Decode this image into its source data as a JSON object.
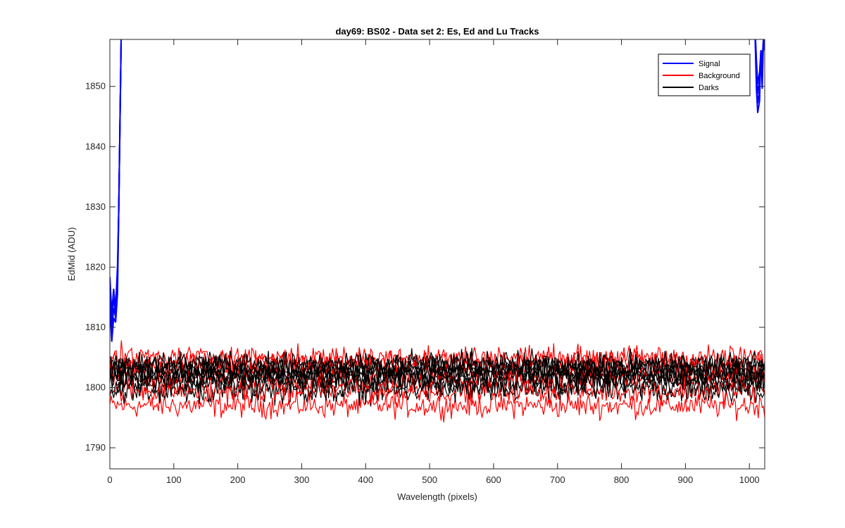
{
  "chart_data": {
    "type": "line",
    "title": "day69: BS02 - Data set 2: Es, Ed and Lu Tracks",
    "xlabel": "Wavelength (pixels)",
    "ylabel": "EdMid (ADU)",
    "xlim": [
      0,
      1024
    ],
    "ylim": [
      1786.5,
      1857.8
    ],
    "xticks": [
      0,
      100,
      200,
      300,
      400,
      500,
      600,
      700,
      800,
      900,
      1000
    ],
    "yticks": [
      1790,
      1800,
      1810,
      1820,
      1830,
      1840,
      1850
    ],
    "grid": false,
    "legend_position": "top-right",
    "colors": {
      "Signal": "#0000ff",
      "Background": "#ff0000",
      "Darks": "#000000"
    },
    "series": [
      {
        "name": "Signal",
        "color": "#0000ff",
        "tracks": 4,
        "note_points": [
          [
            0,
            1818
          ],
          [
            5,
            1810
          ],
          [
            10,
            1816
          ],
          [
            13,
            1830
          ],
          [
            17,
            1857.8
          ],
          [
            1008,
            1857.8
          ],
          [
            1013,
            1848
          ],
          [
            1018,
            1852
          ],
          [
            1024,
            1857.8
          ]
        ]
      },
      {
        "name": "Background",
        "color": "#ff0000",
        "tracks": 6,
        "levels": [
          1797,
          1799.5,
          1801.5,
          1803,
          1804,
          1805
        ],
        "noise_amplitude": 1.4
      },
      {
        "name": "Darks",
        "color": "#000000",
        "tracks": 8,
        "levels": [
          1799.5,
          1800.5,
          1801.5,
          1802,
          1802.5,
          1803,
          1803.5,
          1804
        ],
        "noise_amplitude": 1.5
      }
    ]
  }
}
